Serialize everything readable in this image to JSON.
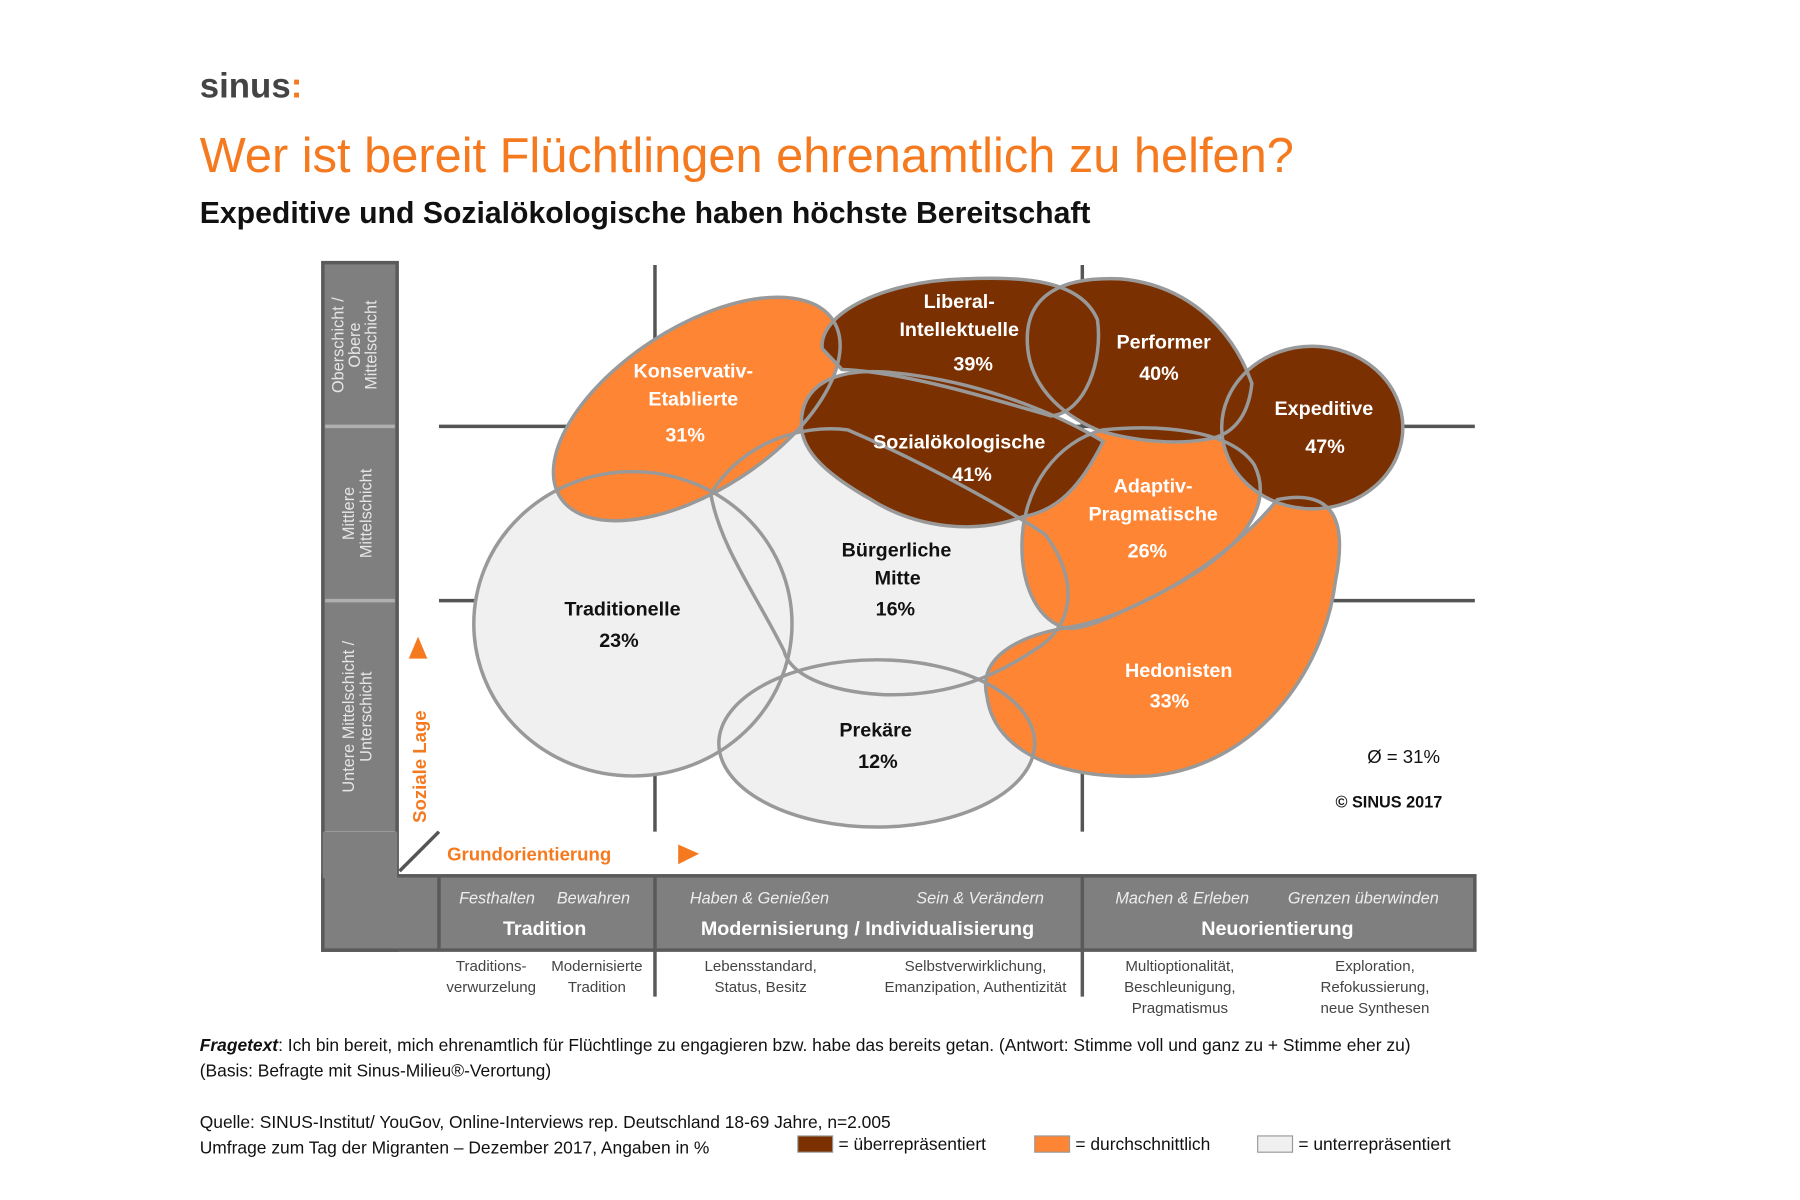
{
  "logo": {
    "text": "sinus",
    "accent": ":"
  },
  "title": "Wer ist bereit Flüchtlingen ehrenamtlich zu helfen?",
  "subtitle": "Expeditive und Sozialökologische haben höchste Bereitschaft",
  "colors": {
    "ueber": "#7a3000",
    "durch": "#fe8533",
    "unter": "#f0f0f0",
    "title": "#f57a1f",
    "axis": "#7f7f7f"
  },
  "milieus": [
    {
      "name": [
        "Konservativ-",
        "Etablierte"
      ],
      "value": "31%",
      "level": "durch"
    },
    {
      "name": [
        "Liberal-",
        "Intellektuelle"
      ],
      "value": "39%",
      "level": "ueber"
    },
    {
      "name": [
        "Performer"
      ],
      "value": "40%",
      "level": "ueber"
    },
    {
      "name": [
        "Expeditive"
      ],
      "value": "47%",
      "level": "ueber"
    },
    {
      "name": [
        "Sozialökologische"
      ],
      "value": "41%",
      "level": "ueber"
    },
    {
      "name": [
        "Adaptiv-",
        "Pragmatische"
      ],
      "value": "26%",
      "level": "durch"
    },
    {
      "name": [
        "Bürgerliche",
        "Mitte"
      ],
      "value": "16%",
      "level": "unter"
    },
    {
      "name": [
        "Traditionelle"
      ],
      "value": "23%",
      "level": "unter"
    },
    {
      "name": [
        "Prekäre"
      ],
      "value": "12%",
      "level": "unter"
    },
    {
      "name": [
        "Hedonisten"
      ],
      "value": "33%",
      "level": "durch"
    }
  ],
  "average": "Ø = 31%",
  "copyright": "© SINUS 2017",
  "y_axis": {
    "title": "Soziale Lage",
    "rows": [
      [
        "Oberschicht /",
        "Obere",
        "Mittelschicht"
      ],
      [
        "Mittlere",
        "Mittelschicht"
      ],
      [
        "Untere Mittelschicht /",
        "Unterschicht"
      ]
    ]
  },
  "x_axis": {
    "title": "Grundorientierung",
    "columns": [
      {
        "label": "Tradition",
        "subs": [
          "Festhalten",
          "Bewahren"
        ]
      },
      {
        "label": "Modernisierung / Individualisierung",
        "subs": [
          "Haben & Genießen",
          "Sein & Verändern"
        ]
      },
      {
        "label": "Neuorientierung",
        "subs": [
          "Machen & Erleben",
          "Grenzen überwinden"
        ]
      }
    ],
    "descriptions": [
      [
        "Traditions-",
        "verwurzelung"
      ],
      [
        "Modernisierte",
        "Tradition"
      ],
      [
        "Lebensstandard,",
        "Status, Besitz"
      ],
      [
        "Selbstverwirklichung,",
        "Emanzipation, Authentizität"
      ],
      [
        "Multioptionalität,",
        "Beschleunigung,",
        "Pragmatismus"
      ],
      [
        "Exploration,",
        "Refokussierung,",
        "neue Synthesen"
      ]
    ]
  },
  "footer": {
    "fragetext_label": "Fragetext",
    "fragetext": ": Ich bin bereit, mich ehrenamtlich für Flüchtlinge zu engagieren bzw. habe das bereits getan. (Antwort: Stimme voll und ganz zu + Stimme eher zu)",
    "basis": "(Basis: Befragte mit Sinus-Milieu®-Verortung)",
    "quelle": "Quelle: SINUS-Institut/ YouGov, Online-Interviews rep. Deutschland 18-69 Jahre, n=2.005",
    "umfrage": "Umfrage zum Tag der Migranten – Dezember 2017, Angaben in %"
  },
  "legend": [
    {
      "label": "= überrepräsentiert",
      "color": "#7a3000"
    },
    {
      "label": "= durchschnittlich",
      "color": "#fe8533"
    },
    {
      "label": "= unterrepräsentiert",
      "color": "#f0f0f0"
    }
  ]
}
